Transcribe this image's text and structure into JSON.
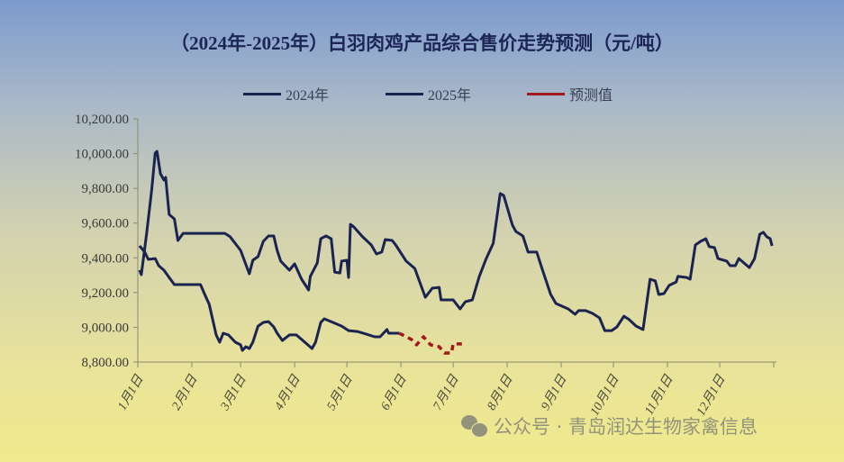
{
  "chart_data": {
    "type": "line",
    "title": "（2024年-2025年）白羽肉鸡产品综合售价走势预测（元/吨）",
    "ylim": [
      8800,
      10200
    ],
    "yticks": [
      "8,800.00",
      "9,000.00",
      "9,200.00",
      "9,400.00",
      "9,600.00",
      "9,800.00",
      "10,000.00",
      "10,200.00"
    ],
    "ytick_values": [
      8800,
      9000,
      9200,
      9400,
      9600,
      9800,
      10000,
      10200
    ],
    "xticks": [
      "1月1日",
      "2月1日",
      "3月1日",
      "4月1日",
      "5月1日",
      "6月1日",
      "7月1日",
      "8月1日",
      "9月1日",
      "10月1日",
      "11月1日",
      "12月1日"
    ],
    "xtick_dates": [
      "01-01",
      "02-01",
      "03-01",
      "04-01",
      "05-01",
      "06-01",
      "07-01",
      "08-01",
      "09-01",
      "10-01",
      "11-01",
      "12-01"
    ],
    "grid": false,
    "legend_position": "top",
    "series": [
      {
        "name": "2024年",
        "color": "#1b2350",
        "dashed": false,
        "points": [
          [
            "01-02",
            9329
          ],
          [
            "01-03",
            9303
          ],
          [
            "01-06",
            9536
          ],
          [
            "01-09",
            9796
          ],
          [
            "01-11",
            10003
          ],
          [
            "01-12",
            10013
          ],
          [
            "01-14",
            9884
          ],
          [
            "01-16",
            9848
          ],
          [
            "01-17",
            9863
          ],
          [
            "01-19",
            9650
          ],
          [
            "01-22",
            9624
          ],
          [
            "01-24",
            9500
          ],
          [
            "01-27",
            9541
          ],
          [
            "02-20",
            9541
          ],
          [
            "02-23",
            9521
          ],
          [
            "03-01",
            9443
          ],
          [
            "03-06",
            9308
          ],
          [
            "03-08",
            9386
          ],
          [
            "03-11",
            9407
          ],
          [
            "03-14",
            9495
          ],
          [
            "03-17",
            9526
          ],
          [
            "03-20",
            9526
          ],
          [
            "03-22",
            9443
          ],
          [
            "03-24",
            9381
          ],
          [
            "03-29",
            9329
          ],
          [
            "04-01",
            9365
          ],
          [
            "04-05",
            9277
          ],
          [
            "04-09",
            9215
          ],
          [
            "04-10",
            9293
          ],
          [
            "04-14",
            9370
          ],
          [
            "04-16",
            9510
          ],
          [
            "04-19",
            9526
          ],
          [
            "04-22",
            9510
          ],
          [
            "04-24",
            9318
          ],
          [
            "04-27",
            9313
          ],
          [
            "04-28",
            9381
          ],
          [
            "05-01",
            9386
          ],
          [
            "05-02",
            9287
          ],
          [
            "05-03",
            9593
          ],
          [
            "05-05",
            9578
          ],
          [
            "05-10",
            9521
          ],
          [
            "05-15",
            9474
          ],
          [
            "05-18",
            9422
          ],
          [
            "05-21",
            9433
          ],
          [
            "05-23",
            9505
          ],
          [
            "05-27",
            9500
          ],
          [
            "05-29",
            9474
          ],
          [
            "06-04",
            9381
          ],
          [
            "06-09",
            9339
          ],
          [
            "06-15",
            9173
          ],
          [
            "06-19",
            9225
          ],
          [
            "06-23",
            9230
          ],
          [
            "06-24",
            9158
          ],
          [
            "07-01",
            9158
          ],
          [
            "07-05",
            9106
          ],
          [
            "07-08",
            9147
          ],
          [
            "07-12",
            9158
          ],
          [
            "07-16",
            9293
          ],
          [
            "07-20",
            9396
          ],
          [
            "07-24",
            9484
          ],
          [
            "07-28",
            9770
          ],
          [
            "07-30",
            9759
          ],
          [
            "08-04",
            9588
          ],
          [
            "08-06",
            9552
          ],
          [
            "08-10",
            9526
          ],
          [
            "08-13",
            9433
          ],
          [
            "08-18",
            9433
          ],
          [
            "08-21",
            9339
          ],
          [
            "08-26",
            9189
          ],
          [
            "08-29",
            9137
          ],
          [
            "09-05",
            9106
          ],
          [
            "09-09",
            9075
          ],
          [
            "09-11",
            9096
          ],
          [
            "09-15",
            9096
          ],
          [
            "09-19",
            9080
          ],
          [
            "09-23",
            9054
          ],
          [
            "09-26",
            8981
          ],
          [
            "09-30",
            8981
          ],
          [
            "10-03",
            9002
          ],
          [
            "10-07",
            9064
          ],
          [
            "10-10",
            9044
          ],
          [
            "10-14",
            9007
          ],
          [
            "10-18",
            8987
          ],
          [
            "10-22",
            9277
          ],
          [
            "10-25",
            9267
          ],
          [
            "10-27",
            9189
          ],
          [
            "10-30",
            9194
          ],
          [
            "11-02",
            9241
          ],
          [
            "11-06",
            9261
          ],
          [
            "11-07",
            9293
          ],
          [
            "11-12",
            9287
          ],
          [
            "11-14",
            9277
          ],
          [
            "11-17",
            9474
          ],
          [
            "11-20",
            9495
          ],
          [
            "11-23",
            9510
          ],
          [
            "11-25",
            9464
          ],
          [
            "11-28",
            9459
          ],
          [
            "11-30",
            9396
          ],
          [
            "12-05",
            9381
          ],
          [
            "12-07",
            9355
          ],
          [
            "12-10",
            9355
          ],
          [
            "12-12",
            9396
          ],
          [
            "12-15",
            9370
          ],
          [
            "12-18",
            9344
          ],
          [
            "12-21",
            9396
          ],
          [
            "12-24",
            9536
          ],
          [
            "12-26",
            9547
          ],
          [
            "12-28",
            9521
          ],
          [
            "12-30",
            9510
          ],
          [
            "12-31",
            9469
          ]
        ]
      },
      {
        "name": "2025年",
        "color": "#1b2350",
        "dashed": false,
        "points": [
          [
            "01-02",
            9469
          ],
          [
            "01-05",
            9433
          ],
          [
            "01-07",
            9391
          ],
          [
            "01-11",
            9396
          ],
          [
            "01-13",
            9355
          ],
          [
            "01-16",
            9329
          ],
          [
            "01-19",
            9287
          ],
          [
            "01-22",
            9246
          ],
          [
            "02-06",
            9246
          ],
          [
            "02-08",
            9199
          ],
          [
            "02-11",
            9132
          ],
          [
            "02-15",
            8956
          ],
          [
            "02-17",
            8914
          ],
          [
            "02-19",
            8966
          ],
          [
            "02-22",
            8956
          ],
          [
            "02-26",
            8914
          ],
          [
            "03-01",
            8899
          ],
          [
            "03-02",
            8867
          ],
          [
            "03-04",
            8888
          ],
          [
            "03-06",
            8878
          ],
          [
            "03-08",
            8914
          ],
          [
            "03-11",
            9007
          ],
          [
            "03-14",
            9028
          ],
          [
            "03-17",
            9033
          ],
          [
            "03-20",
            9002
          ],
          [
            "03-22",
            8966
          ],
          [
            "03-25",
            8924
          ],
          [
            "03-29",
            8956
          ],
          [
            "04-02",
            8956
          ],
          [
            "04-05",
            8930
          ],
          [
            "04-08",
            8904
          ],
          [
            "04-11",
            8878
          ],
          [
            "04-13",
            8914
          ],
          [
            "04-16",
            9028
          ],
          [
            "04-18",
            9049
          ],
          [
            "04-23",
            9028
          ],
          [
            "04-28",
            9007
          ],
          [
            "05-02",
            8981
          ],
          [
            "05-07",
            8976
          ],
          [
            "05-12",
            8961
          ],
          [
            "05-17",
            8945
          ],
          [
            "05-20",
            8945
          ],
          [
            "05-24",
            8987
          ],
          [
            "05-25",
            8966
          ],
          [
            "05-31",
            8966
          ]
        ]
      },
      {
        "name": "预测值",
        "color": "#a3191b",
        "dashed": true,
        "points": [
          [
            "05-31",
            8966
          ],
          [
            "06-02",
            8956
          ],
          [
            "06-07",
            8930
          ],
          [
            "06-10",
            8899
          ],
          [
            "06-14",
            8945
          ],
          [
            "06-18",
            8899
          ],
          [
            "06-23",
            8888
          ],
          [
            "06-26",
            8852
          ],
          [
            "06-30",
            8852
          ],
          [
            "07-01",
            8904
          ],
          [
            "07-06",
            8904
          ]
        ]
      }
    ]
  },
  "watermark": {
    "text": "公众号 · 青岛润达生物家禽信息",
    "icon": "wechat-icon"
  }
}
